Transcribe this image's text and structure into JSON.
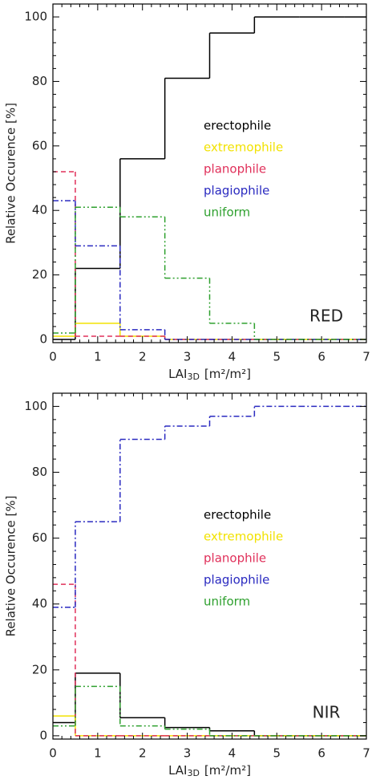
{
  "chart_data": [
    {
      "type": "histogram",
      "annotation": "RED",
      "ylabel": "Relative Occurence [%]",
      "xlabel": {
        "main": "LAI",
        "sub": "3D",
        "unit": "[m²/m²]"
      },
      "bins": [
        0,
        0.5,
        1.5,
        2.5,
        3.5,
        4.5,
        5.5,
        6.5,
        7
      ],
      "xlim": [
        0,
        7
      ],
      "xticks": [
        0,
        1,
        2,
        3,
        4,
        5,
        6,
        7
      ],
      "ylim": [
        -1,
        104
      ],
      "yticks": [
        0,
        20,
        40,
        60,
        80,
        100
      ],
      "legend": "center",
      "series": [
        {
          "name": "erectophile",
          "color": "#000000",
          "linestyle": "solid",
          "values": [
            0,
            22,
            56,
            81,
            95,
            100,
            100,
            100
          ]
        },
        {
          "name": "extremophile",
          "color": "#f2e200",
          "linestyle": "solid",
          "values": [
            1,
            5,
            1,
            0,
            0,
            0,
            0,
            0
          ]
        },
        {
          "name": "planophile",
          "color": "#e0305a",
          "linestyle": "dashed",
          "values": [
            52,
            1,
            1,
            0,
            0,
            0,
            0,
            0
          ]
        },
        {
          "name": "plagiophile",
          "color": "#2a2ac0",
          "linestyle": "dashdot",
          "values": [
            43,
            29,
            3,
            0,
            0,
            0,
            0,
            0
          ]
        },
        {
          "name": "uniform",
          "color": "#2ea02e",
          "linestyle": "dashdotdot",
          "values": [
            2,
            41,
            38,
            19,
            5,
            0,
            0,
            0
          ]
        }
      ]
    },
    {
      "type": "histogram",
      "annotation": "NIR",
      "ylabel": "Relative Occurence [%]",
      "xlabel": {
        "main": "LAI",
        "sub": "3D",
        "unit": "[m²/m²]"
      },
      "bins": [
        0,
        0.5,
        1.5,
        2.5,
        3.5,
        4.5,
        5.5,
        6.5,
        7
      ],
      "xlim": [
        0,
        7
      ],
      "xticks": [
        0,
        1,
        2,
        3,
        4,
        5,
        6,
        7
      ],
      "ylim": [
        -1,
        104
      ],
      "yticks": [
        0,
        20,
        40,
        60,
        80,
        100
      ],
      "legend": "center",
      "series": [
        {
          "name": "erectophile",
          "color": "#000000",
          "linestyle": "solid",
          "values": [
            4,
            19,
            5.5,
            2.5,
            1.5,
            0,
            0,
            0
          ]
        },
        {
          "name": "extremophile",
          "color": "#f2e200",
          "linestyle": "solid",
          "values": [
            6,
            0,
            0,
            0,
            0,
            0,
            0,
            0
          ]
        },
        {
          "name": "planophile",
          "color": "#e0305a",
          "linestyle": "dashed",
          "values": [
            46,
            0,
            0,
            0,
            0,
            0,
            0,
            0
          ]
        },
        {
          "name": "plagiophile",
          "color": "#2a2ac0",
          "linestyle": "dashdot",
          "values": [
            39,
            65,
            90,
            94,
            97,
            100,
            100,
            100
          ]
        },
        {
          "name": "uniform",
          "color": "#2ea02e",
          "linestyle": "dashdotdot",
          "values": [
            3,
            15,
            3,
            2,
            0,
            0,
            0,
            0
          ]
        }
      ]
    }
  ]
}
